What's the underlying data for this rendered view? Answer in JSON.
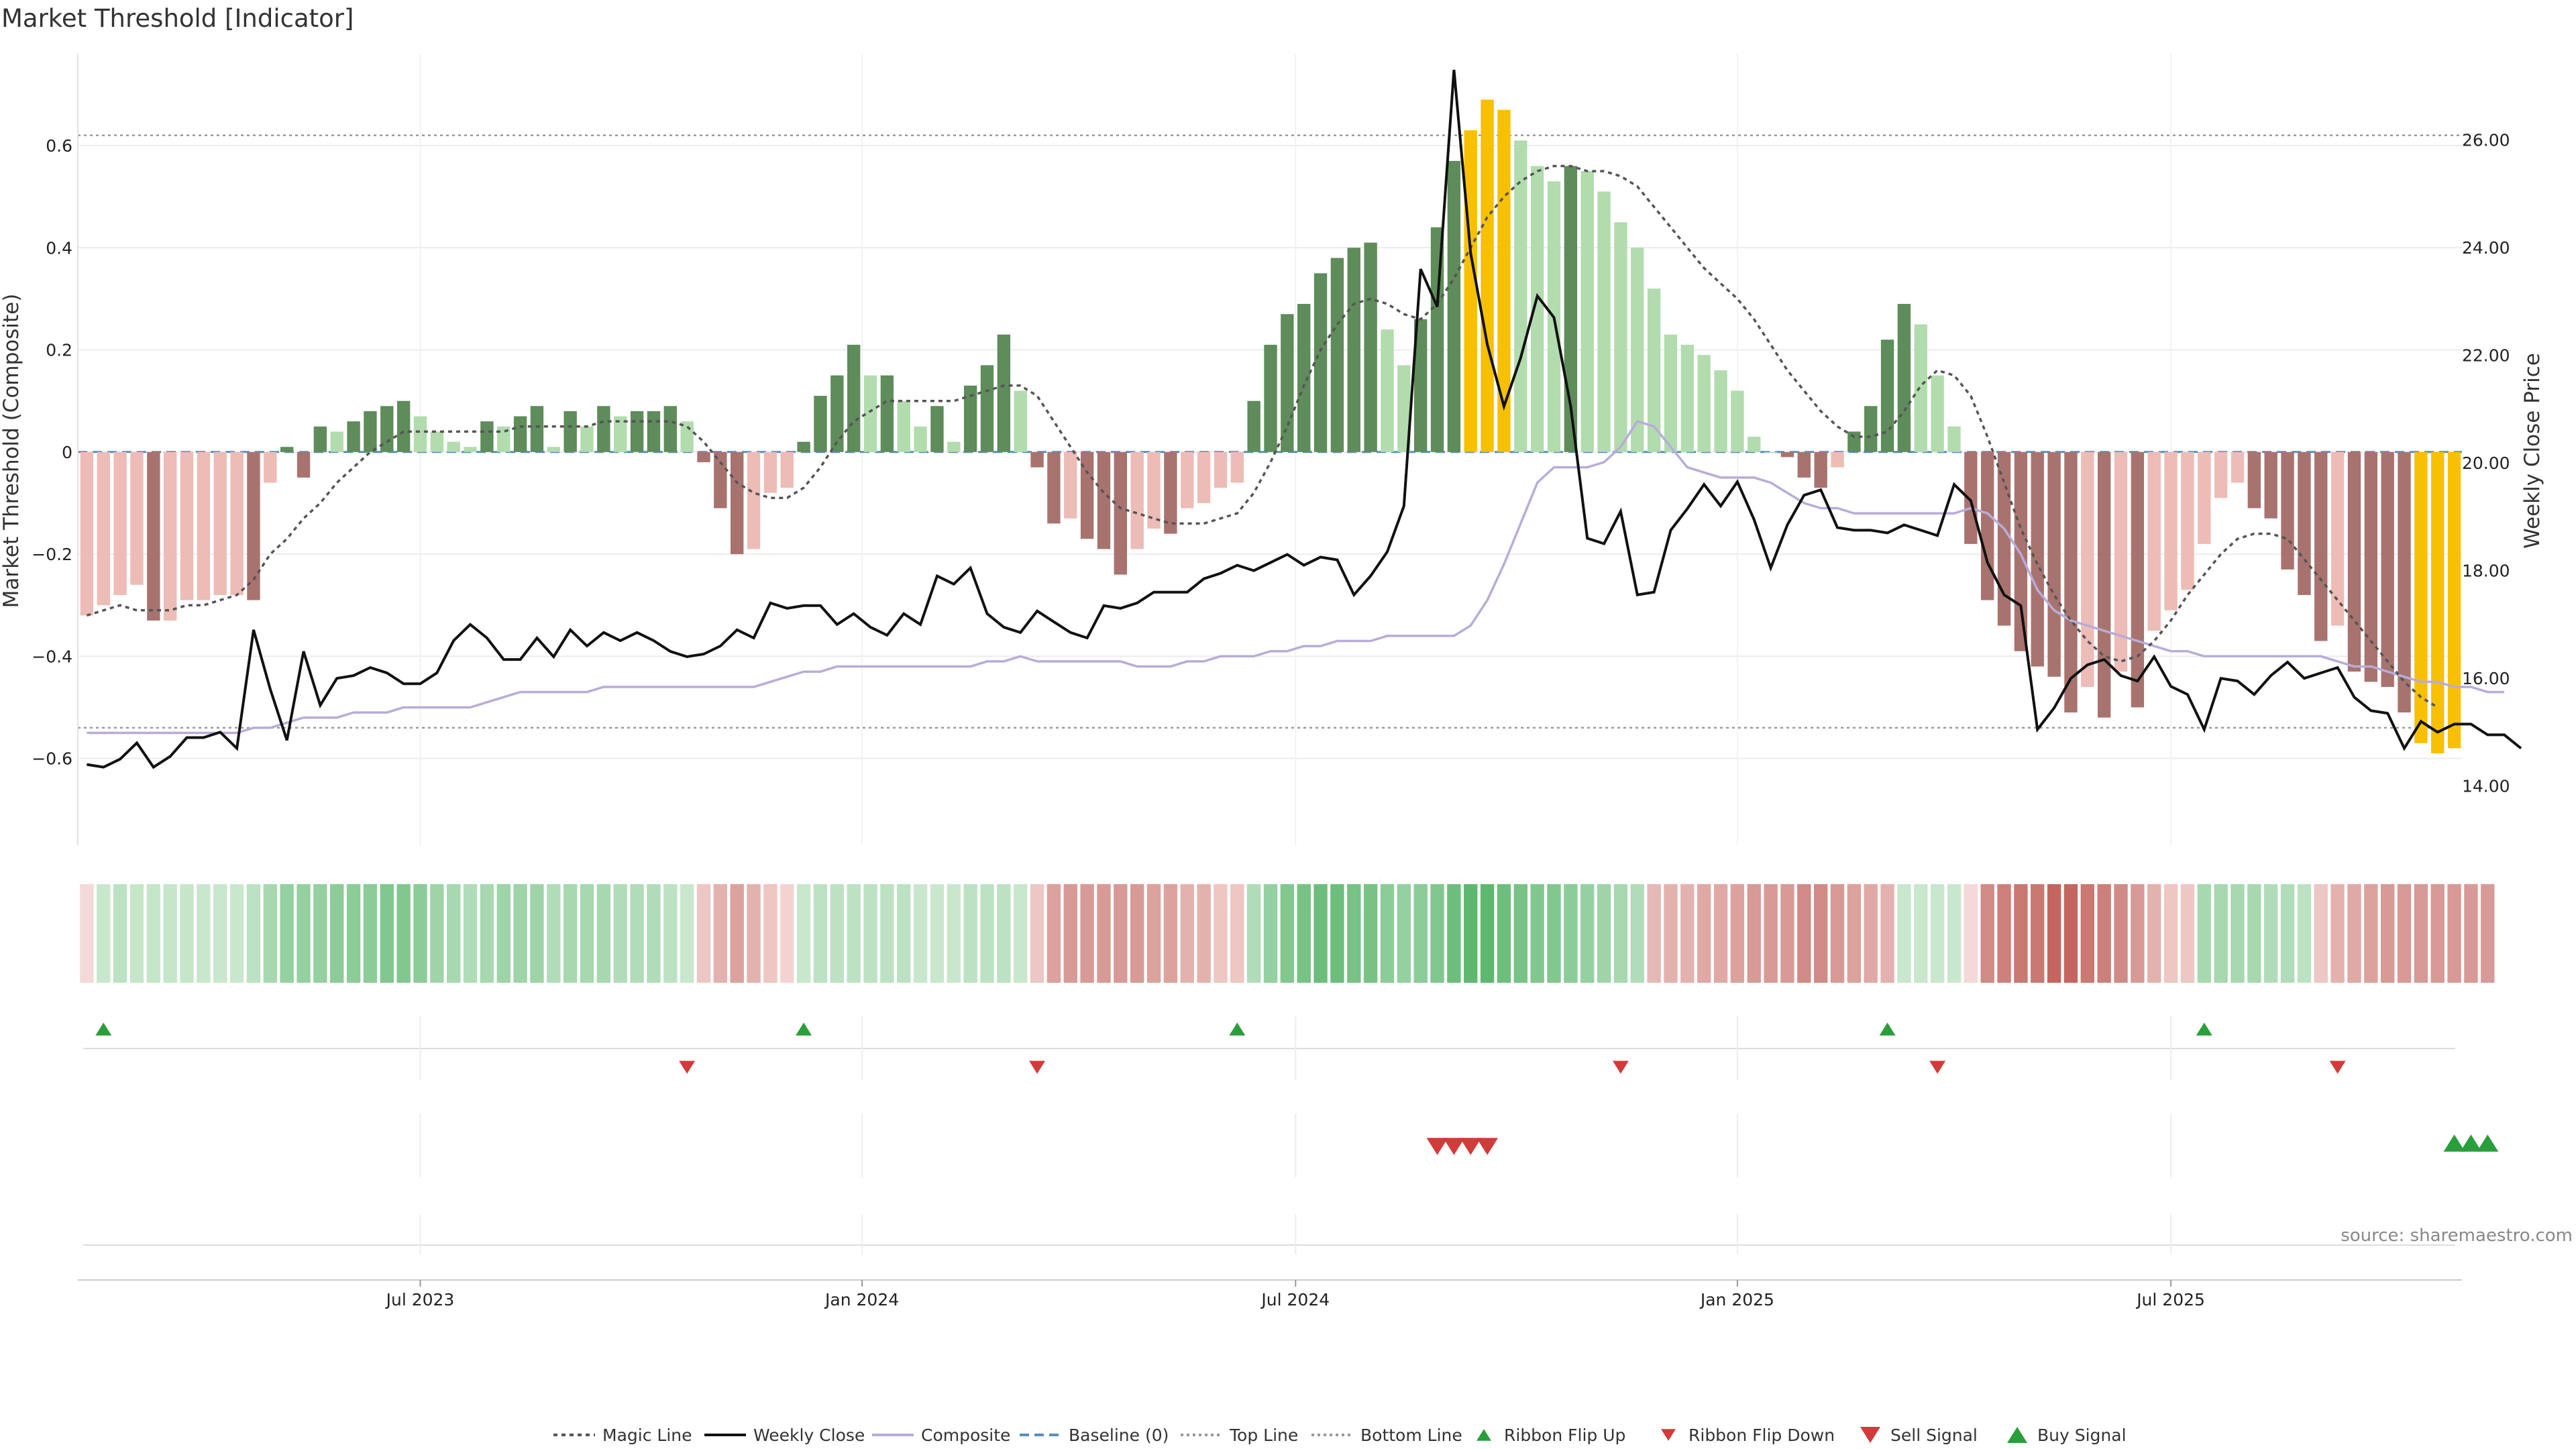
{
  "chart_data": {
    "type": "bar",
    "title": "Market Threshold [Indicator]",
    "ylabel": "Market Threshold (Composite)",
    "y2label": "Weekly Close Price",
    "ylim": [
      -0.77,
      0.78
    ],
    "y2lim": [
      12.9,
      27.6
    ],
    "yticks": [
      "0.6",
      "0.4",
      "0.2",
      "0",
      "−0.2",
      "−0.4",
      "−0.6"
    ],
    "yticks_values": [
      0.6,
      0.4,
      0.2,
      0,
      -0.2,
      -0.4,
      -0.6
    ],
    "y2ticks": [
      "26.00",
      "24.00",
      "22.00",
      "20.00",
      "18.00",
      "16.00",
      "14.00"
    ],
    "y2ticks_values": [
      26,
      24,
      22,
      20,
      18,
      16,
      14
    ],
    "xticks": [
      {
        "label": "Jul 2023",
        "week": 20.5
      },
      {
        "label": "Jan 2024",
        "week": 47
      },
      {
        "label": "Jul 2024",
        "week": 73
      },
      {
        "label": "Jan 2025",
        "week": 99.5
      },
      {
        "label": "Jul 2025",
        "week": 125.5
      }
    ],
    "top_line": 0.62,
    "bottom_line": -0.54,
    "baseline": 0,
    "composite_bars": [
      -0.32,
      -0.3,
      -0.28,
      -0.26,
      -0.33,
      -0.33,
      -0.29,
      -0.29,
      -0.28,
      -0.28,
      -0.29,
      -0.06,
      0.01,
      -0.05,
      0.05,
      0.04,
      0.06,
      0.08,
      0.09,
      0.1,
      0.07,
      0.04,
      0.02,
      0.01,
      0.06,
      0.05,
      0.07,
      0.09,
      0.01,
      0.08,
      0.05,
      0.09,
      0.07,
      0.08,
      0.08,
      0.09,
      0.06,
      -0.02,
      -0.11,
      -0.2,
      -0.19,
      -0.08,
      -0.07,
      0.02,
      0.11,
      0.15,
      0.21,
      0.15,
      0.15,
      0.1,
      0.05,
      0.09,
      0.02,
      0.13,
      0.17,
      0.23,
      0.12,
      -0.03,
      -0.14,
      -0.13,
      -0.17,
      -0.19,
      -0.24,
      -0.19,
      -0.15,
      -0.16,
      -0.11,
      -0.1,
      -0.07,
      -0.06,
      0.1,
      0.21,
      0.27,
      0.29,
      0.35,
      0.38,
      0.4,
      0.41,
      0.24,
      0.17,
      0.26,
      0.44,
      0.57,
      0.63,
      0.69,
      0.67,
      0.61,
      0.56,
      0.53,
      0.56,
      0.55,
      0.51,
      0.45,
      0.4,
      0.32,
      0.23,
      0.21,
      0.19,
      0.16,
      0.12,
      0.03,
      0.0,
      -0.01,
      -0.05,
      -0.07,
      -0.03,
      0.04,
      0.09,
      0.22,
      0.29,
      0.25,
      0.15,
      0.05,
      -0.18,
      -0.29,
      -0.34,
      -0.39,
      -0.42,
      -0.44,
      -0.51,
      -0.46,
      -0.52,
      -0.43,
      -0.5,
      -0.35,
      -0.31,
      -0.27,
      -0.18,
      -0.09,
      -0.06,
      -0.11,
      -0.13,
      -0.23,
      -0.28,
      -0.37,
      -0.34,
      -0.43,
      -0.45,
      -0.46,
      -0.51,
      -0.57,
      -0.59,
      -0.58
    ],
    "weekly_close": [
      14.4,
      14.35,
      14.5,
      14.8,
      14.35,
      14.55,
      14.9,
      14.9,
      15.0,
      14.7,
      16.9,
      15.8,
      14.85,
      16.5,
      15.5,
      16.0,
      16.05,
      16.2,
      16.1,
      15.9,
      15.9,
      16.1,
      16.7,
      17.0,
      16.75,
      16.35,
      16.35,
      16.75,
      16.4,
      16.9,
      16.6,
      16.85,
      16.7,
      16.85,
      16.7,
      16.5,
      16.4,
      16.45,
      16.6,
      16.9,
      16.75,
      17.4,
      17.3,
      17.35,
      17.35,
      17.0,
      17.2,
      16.95,
      16.8,
      17.2,
      17.0,
      17.9,
      17.75,
      18.05,
      17.2,
      16.95,
      16.85,
      17.25,
      17.05,
      16.85,
      16.75,
      17.35,
      17.3,
      17.4,
      17.6,
      17.6,
      17.6,
      17.85,
      17.95,
      18.1,
      18.0,
      18.15,
      18.3,
      18.1,
      18.25,
      18.2,
      17.55,
      17.9,
      18.35,
      19.2,
      23.6,
      22.9,
      27.3,
      23.9,
      22.2,
      21.05,
      21.95,
      23.1,
      22.7,
      21.05,
      18.6,
      18.5,
      19.1,
      17.55,
      17.6,
      18.75,
      19.15,
      19.6,
      19.2,
      19.65,
      18.95,
      18.05,
      18.85,
      19.4,
      19.5,
      18.8,
      18.75,
      18.75,
      18.7,
      18.85,
      18.75,
      18.65,
      19.6,
      19.3,
      18.15,
      17.55,
      17.35,
      15.05,
      15.45,
      16.0,
      16.25,
      16.35,
      16.05,
      15.95,
      16.4,
      15.85,
      15.7,
      15.05,
      16.0,
      15.95,
      15.7,
      16.05,
      16.3,
      16.0,
      16.1,
      16.2,
      15.65,
      15.4,
      15.35,
      14.7,
      15.2,
      15.0,
      15.15,
      15.15,
      14.95,
      14.95,
      14.7
    ],
    "magic_line": [
      -0.32,
      -0.31,
      -0.3,
      -0.31,
      -0.31,
      -0.31,
      -0.3,
      -0.3,
      -0.29,
      -0.28,
      -0.25,
      -0.2,
      -0.17,
      -0.13,
      -0.1,
      -0.06,
      -0.03,
      0.0,
      0.02,
      0.04,
      0.04,
      0.04,
      0.04,
      0.04,
      0.04,
      0.04,
      0.05,
      0.05,
      0.05,
      0.05,
      0.05,
      0.06,
      0.06,
      0.06,
      0.06,
      0.06,
      0.05,
      0.02,
      -0.02,
      -0.06,
      -0.08,
      -0.09,
      -0.09,
      -0.07,
      -0.03,
      0.02,
      0.06,
      0.08,
      0.1,
      0.1,
      0.1,
      0.1,
      0.1,
      0.11,
      0.12,
      0.13,
      0.13,
      0.11,
      0.06,
      0.01,
      -0.04,
      -0.08,
      -0.11,
      -0.12,
      -0.13,
      -0.14,
      -0.14,
      -0.14,
      -0.13,
      -0.12,
      -0.08,
      -0.02,
      0.05,
      0.13,
      0.2,
      0.25,
      0.29,
      0.3,
      0.29,
      0.27,
      0.26,
      0.29,
      0.34,
      0.4,
      0.46,
      0.5,
      0.53,
      0.55,
      0.56,
      0.56,
      0.55,
      0.55,
      0.54,
      0.52,
      0.48,
      0.44,
      0.4,
      0.36,
      0.33,
      0.3,
      0.26,
      0.21,
      0.16,
      0.12,
      0.08,
      0.05,
      0.03,
      0.03,
      0.04,
      0.08,
      0.13,
      0.16,
      0.15,
      0.11,
      0.03,
      -0.06,
      -0.15,
      -0.22,
      -0.28,
      -0.33,
      -0.37,
      -0.4,
      -0.41,
      -0.4,
      -0.37,
      -0.33,
      -0.28,
      -0.24,
      -0.2,
      -0.17,
      -0.16,
      -0.16,
      -0.17,
      -0.21,
      -0.25,
      -0.29,
      -0.33,
      -0.37,
      -0.41,
      -0.45,
      -0.48,
      -0.5
    ],
    "composite_line": [
      -0.55,
      -0.55,
      -0.55,
      -0.55,
      -0.55,
      -0.55,
      -0.55,
      -0.55,
      -0.55,
      -0.55,
      -0.54,
      -0.54,
      -0.53,
      -0.52,
      -0.52,
      -0.52,
      -0.51,
      -0.51,
      -0.51,
      -0.5,
      -0.5,
      -0.5,
      -0.5,
      -0.5,
      -0.49,
      -0.48,
      -0.47,
      -0.47,
      -0.47,
      -0.47,
      -0.47,
      -0.46,
      -0.46,
      -0.46,
      -0.46,
      -0.46,
      -0.46,
      -0.46,
      -0.46,
      -0.46,
      -0.46,
      -0.45,
      -0.44,
      -0.43,
      -0.43,
      -0.42,
      -0.42,
      -0.42,
      -0.42,
      -0.42,
      -0.42,
      -0.42,
      -0.42,
      -0.42,
      -0.41,
      -0.41,
      -0.4,
      -0.41,
      -0.41,
      -0.41,
      -0.41,
      -0.41,
      -0.41,
      -0.42,
      -0.42,
      -0.42,
      -0.41,
      -0.41,
      -0.4,
      -0.4,
      -0.4,
      -0.39,
      -0.39,
      -0.38,
      -0.38,
      -0.37,
      -0.37,
      -0.37,
      -0.36,
      -0.36,
      -0.36,
      -0.36,
      -0.36,
      -0.34,
      -0.29,
      -0.22,
      -0.14,
      -0.06,
      -0.03,
      -0.03,
      -0.03,
      -0.02,
      0.01,
      0.06,
      0.05,
      0.01,
      -0.03,
      -0.04,
      -0.05,
      -0.05,
      -0.05,
      -0.06,
      -0.08,
      -0.1,
      -0.11,
      -0.11,
      -0.12,
      -0.12,
      -0.12,
      -0.12,
      -0.12,
      -0.12,
      -0.12,
      -0.11,
      -0.12,
      -0.15,
      -0.2,
      -0.27,
      -0.31,
      -0.33,
      -0.34,
      -0.35,
      -0.36,
      -0.37,
      -0.38,
      -0.39,
      -0.39,
      -0.4,
      -0.4,
      -0.4,
      -0.4,
      -0.4,
      -0.4,
      -0.4,
      -0.4,
      -0.41,
      -0.42,
      -0.42,
      -0.43,
      -0.44,
      -0.45,
      -0.45,
      -0.46,
      -0.46,
      -0.47,
      -0.47
    ],
    "ribbon_colors": [
      "#f3d9d7",
      "#c9e7cd",
      "#bce2c3",
      "#c6e6ca",
      "#c6e6ca",
      "#c6e6ca",
      "#c6e6ca",
      "#c9e7cd",
      "#c9e7cd",
      "#c9e7cd",
      "#bce2c3",
      "#a7d8b0",
      "#95d0a0",
      "#95d0a0",
      "#95d0a0",
      "#8ccc98",
      "#8ccc98",
      "#8ccc98",
      "#82c78f",
      "#82c78f",
      "#8ccc98",
      "#9ed4a8",
      "#a7d8b0",
      "#b1dcb9",
      "#a7d8b0",
      "#9ed4a8",
      "#9ed4a8",
      "#9ed4a8",
      "#b1dcb9",
      "#a7d8b0",
      "#a7d8b0",
      "#a7d8b0",
      "#b1dcb9",
      "#b1dcb9",
      "#b1dcb9",
      "#bce2c3",
      "#c9e7cd",
      "#ecc7c4",
      "#e4b2ae",
      "#dca29e",
      "#e4b2ae",
      "#eec6c2",
      "#f3d3d0",
      "#c9e7cd",
      "#bce2c3",
      "#bce2c3",
      "#bce2c3",
      "#bce2c3",
      "#bce2c3",
      "#bce2c3",
      "#c9e7cd",
      "#c9e7cd",
      "#c9e7cd",
      "#bce2c3",
      "#bce2c3",
      "#bce2c3",
      "#c9e7cd",
      "#ecc7c4",
      "#dca29e",
      "#d79a96",
      "#d79a96",
      "#d79a96",
      "#d79a96",
      "#d79a96",
      "#dca29e",
      "#dca29e",
      "#e4b2ae",
      "#e4b2ae",
      "#eec6c2",
      "#eec6c2",
      "#b1dcb9",
      "#95d0a0",
      "#82c78f",
      "#78c286",
      "#6dbe7c",
      "#6dbe7c",
      "#78c286",
      "#78c286",
      "#8ccc98",
      "#95d0a0",
      "#8ccc98",
      "#82c78f",
      "#6dbe7c",
      "#5fb86f",
      "#5fb86f",
      "#6dbe7c",
      "#78c286",
      "#82c78f",
      "#82c78f",
      "#8ccc98",
      "#95d0a0",
      "#9ed4a8",
      "#a7d8b0",
      "#b1dcb9",
      "#e4b9b6",
      "#e4b2ae",
      "#e4b2ae",
      "#e0a9a5",
      "#e0a9a5",
      "#dca29e",
      "#d79a96",
      "#d79a96",
      "#d79a96",
      "#d08b86",
      "#d08b86",
      "#d79a96",
      "#dca29e",
      "#e0a9a5",
      "#e4b2ae",
      "#c9e7cd",
      "#c9e7cd",
      "#c9e7cd",
      "#c9e7cd",
      "#f3d9d7",
      "#d08b86",
      "#cd807b",
      "#c97872",
      "#c97872",
      "#c4665f",
      "#c4665f",
      "#c97872",
      "#cd807b",
      "#d08b86",
      "#d79a96",
      "#e4b2ae",
      "#eec6c2",
      "#ecc7c4",
      "#a7d8b0",
      "#a7d8b0",
      "#a7d8b0",
      "#a7d8b0",
      "#b1dcb9",
      "#b1dcb9",
      "#bce2c3",
      "#ecc7c4",
      "#e4b2ae",
      "#e0a9a5",
      "#dca29e",
      "#d79a96",
      "#d79a96",
      "#d79a96",
      "#d79a96",
      "#d79a96",
      "#d79a96",
      "#d79a96"
    ],
    "ribbon_flip_up_weeks": [
      1,
      43,
      69,
      108,
      127
    ],
    "ribbon_flip_down_weeks": [
      36,
      57,
      92,
      111,
      135
    ],
    "sell_signal_weeks": [
      81,
      82,
      83,
      84
    ],
    "buy_signal_weeks": [
      142,
      143,
      144
    ],
    "colors": {
      "bull_strong": "#5e8c5a",
      "bull_weak": "#b2dcae",
      "bear_strong": "#a8736f",
      "bear_weak": "#edbcb7",
      "extreme": "#f8c002",
      "weekly_close": "#111111",
      "composite": "#b8acd8",
      "magic": "#555555",
      "baseline": "#5590b8",
      "signal_up": "#2a9e3a",
      "signal_down": "#d33a3a"
    },
    "legend": [
      "Magic Line",
      "Weekly Close",
      "Composite",
      "Baseline (0)",
      "Top Line",
      "Bottom Line",
      "Ribbon Flip Up",
      "Ribbon Flip Down",
      "Sell Signal",
      "Buy Signal"
    ],
    "source": "source: sharemaestro.com"
  }
}
